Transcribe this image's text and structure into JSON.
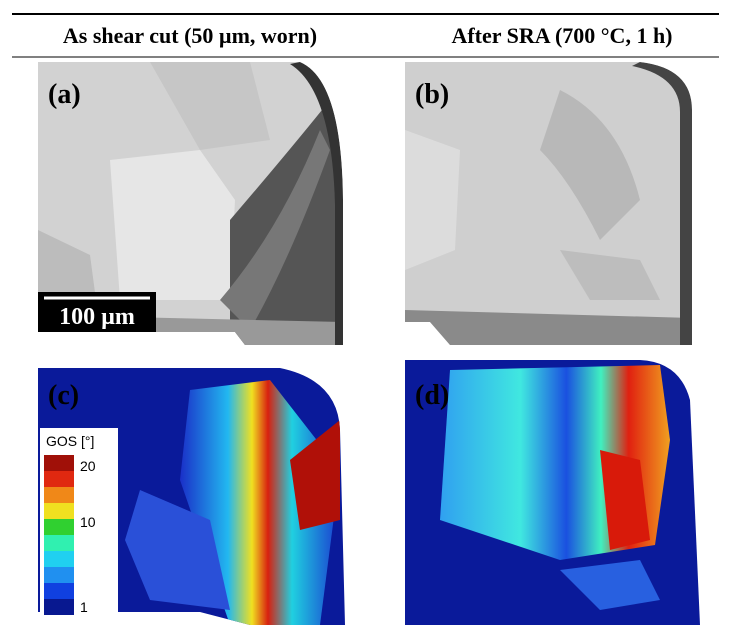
{
  "header": [
    "As shear cut (50 µm, worn)",
    "After SRA (700 °C, 1 h)"
  ],
  "panels": [
    {
      "label": "(a)"
    },
    {
      "label": "(b)"
    },
    {
      "label": "(c)"
    },
    {
      "label": "(d)"
    }
  ],
  "scale_bar": "100 µm",
  "legend": {
    "title": "GOS [°]",
    "ticks": [
      "20",
      "10",
      "1"
    ]
  }
}
